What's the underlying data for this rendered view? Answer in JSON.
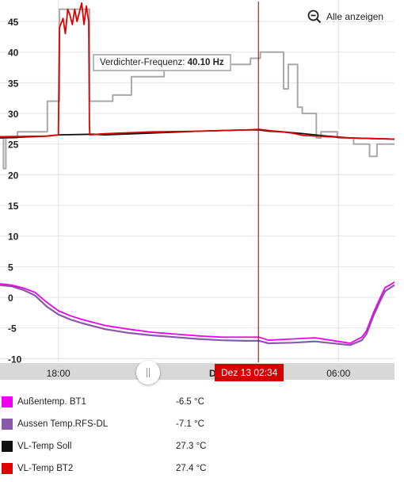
{
  "chart_data": {
    "type": "line",
    "y_ticks": [
      45,
      40,
      35,
      30,
      25,
      20,
      15,
      10,
      5,
      0,
      -5,
      -10
    ],
    "ylim": [
      -10.6,
      48.5
    ],
    "x_ticks": [
      "18:00",
      "06:00"
    ],
    "x_tick_hours": [
      18,
      30
    ],
    "x_range_hours": [
      15.5,
      32.4
    ],
    "grid": true,
    "cursor_hour": 26.57,
    "series": [
      {
        "key": "gray",
        "color": "#a8a8a8",
        "width": 2,
        "step": true,
        "x": [
          15.5,
          15.55,
          15.65,
          15.75,
          16.2,
          16.25,
          17.5,
          17.53,
          18,
          18.05,
          19.3,
          19.33,
          20.3,
          20.33,
          21.1,
          21.13,
          22.5,
          22.53,
          24,
          24.05,
          26.2,
          26.23,
          26.6,
          26.65,
          27.6,
          27.65,
          27.8,
          27.85,
          28.2,
          28.25,
          28.4,
          28.45,
          29,
          29.05,
          29.2,
          29.25,
          29.9,
          29.95,
          30.6,
          30.65,
          31.3,
          31.33,
          31.6,
          31.65,
          32.4
        ],
        "y": [
          26,
          26,
          21,
          26,
          26,
          27,
          27,
          32,
          32,
          47,
          47,
          32,
          32,
          33,
          33,
          36,
          36,
          37,
          37,
          38,
          38,
          39,
          39,
          40,
          40,
          34,
          34,
          38,
          38,
          31,
          31,
          30,
          30,
          26,
          26,
          27,
          27,
          26,
          26,
          25,
          25,
          23,
          23,
          25,
          25
        ]
      },
      {
        "key": "soll",
        "color": "#111111",
        "width": 1.8,
        "step": false,
        "x": [
          15.5,
          17.5,
          18,
          19.5,
          20,
          22,
          24,
          26,
          26.6,
          27,
          27.6,
          28.5,
          29.5,
          30.5,
          31.5,
          32.4
        ],
        "y": [
          26,
          26.3,
          26.5,
          26.6,
          26.5,
          26.8,
          27.1,
          27.3,
          27.3,
          27.1,
          27,
          26.7,
          26.3,
          26,
          25.9,
          25.8
        ]
      },
      {
        "key": "bt2",
        "color": "#e00000",
        "width": 1.8,
        "step": false,
        "x": [
          15.5,
          17.5,
          18,
          18.05,
          18.2,
          18.3,
          18.4,
          18.5,
          18.6,
          18.7,
          18.8,
          18.9,
          19,
          19.1,
          19.2,
          19.3,
          19.33,
          19.35,
          20,
          22,
          24,
          25,
          26,
          26.6,
          27,
          27.6,
          28,
          28.5,
          29.5,
          30.5,
          31.5,
          32.4
        ],
        "y": [
          26.2,
          26.3,
          26.5,
          44,
          45.5,
          43,
          47,
          46,
          44.5,
          47,
          45,
          46.5,
          48,
          44.5,
          47.5,
          45,
          28,
          26.5,
          26.7,
          27,
          27.1,
          27.2,
          27.3,
          27.4,
          27.2,
          27,
          26.8,
          26.4,
          26.2,
          26,
          25.9,
          25.8
        ]
      },
      {
        "key": "rfs",
        "color": "#8a58a8",
        "width": 2.2,
        "step": false,
        "x": [
          15.5,
          16,
          16.5,
          17,
          17.5,
          18,
          18.5,
          19,
          19.5,
          20,
          21,
          22,
          23,
          24,
          25,
          26,
          26.6,
          27,
          28,
          29,
          30,
          30.5,
          31,
          31.2,
          31.5,
          31.8,
          32,
          32.2,
          32.4
        ],
        "y": [
          2,
          1.8,
          1.2,
          0.3,
          -1.5,
          -2.8,
          -3.6,
          -4.2,
          -4.7,
          -5.2,
          -5.8,
          -6.2,
          -6.5,
          -6.8,
          -7,
          -7.1,
          -7.1,
          -7.5,
          -7.4,
          -7.2,
          -7.6,
          -7.8,
          -7,
          -6,
          -3,
          -0.5,
          1,
          1.5,
          2
        ]
      },
      {
        "key": "bt1",
        "color": "#ee00ee",
        "width": 1.8,
        "step": false,
        "x": [
          15.5,
          16,
          16.5,
          17,
          17.5,
          18,
          18.5,
          19,
          19.5,
          20,
          21,
          22,
          23,
          24,
          25,
          26,
          26.6,
          27,
          28,
          29,
          30,
          30.5,
          31,
          31.2,
          31.5,
          31.8,
          32,
          32.2,
          32.4
        ],
        "y": [
          2.2,
          2,
          1.5,
          0.8,
          -0.8,
          -2.2,
          -3,
          -3.6,
          -4.1,
          -4.6,
          -5.2,
          -5.7,
          -6,
          -6.3,
          -6.5,
          -6.5,
          -6.5,
          -7,
          -6.8,
          -6.6,
          -7.2,
          -7.5,
          -6.5,
          -5.5,
          -2.5,
          0,
          1.6,
          2,
          2.5
        ]
      }
    ]
  },
  "toolbar": {
    "zoom_reset_label": "Alle anzeigen"
  },
  "tooltip": {
    "label": "Verdichter-Frequenz:",
    "value": "40.10 Hz"
  },
  "navigator": {
    "cursor_label": "Dez 13 02:34",
    "hidden_label_prefix": "D"
  },
  "legend": [
    {
      "name": "Außentemp. BT1",
      "value": "-6.5 °C",
      "color": "#ee00ee"
    },
    {
      "name": "Aussen Temp.RFS-DL",
      "value": "-7.1 °C",
      "color": "#8a58a8"
    },
    {
      "name": "VL-Temp Soll",
      "value": "27.3 °C",
      "color": "#111111"
    },
    {
      "name": "VL-Temp BT2",
      "value": "27.4 °C",
      "color": "#e00000"
    }
  ]
}
